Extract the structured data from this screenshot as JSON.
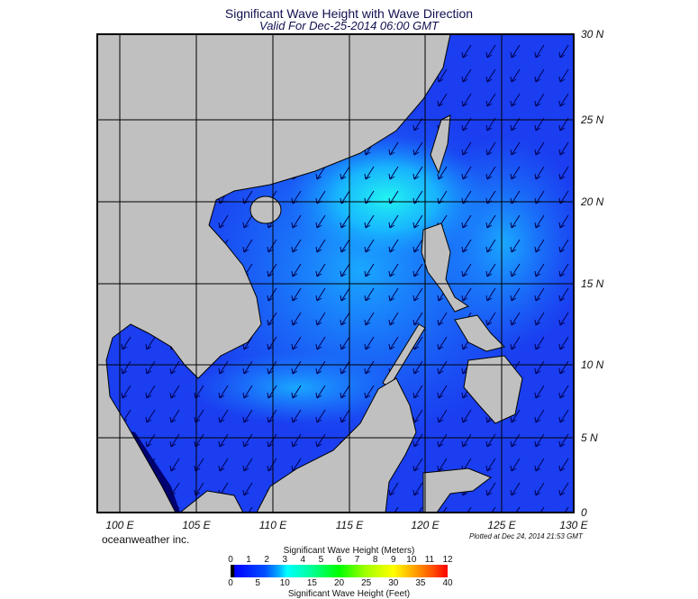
{
  "header": {
    "title": "Significant Wave Height with Wave Direction",
    "subtitle": "Valid For Dec-25-2014 06:00 GMT"
  },
  "map": {
    "lat_labels": [
      "30 N",
      "25 N",
      "20 N",
      "15 N",
      "10 N",
      "5 N",
      "0"
    ],
    "lon_labels": [
      "100 E",
      "105 E",
      "110 E",
      "115 E",
      "120 E",
      "125 E",
      "130 E"
    ],
    "colors": {
      "land": "#c0c0c0",
      "ocean_deep": "#1a3ef0",
      "ocean_mid": "#1690ff",
      "ocean_high": "#20f0f0",
      "dark_water": "#000060",
      "arrow": "#000050"
    }
  },
  "footer": {
    "brand": "oceanweather inc.",
    "plotted": "Plotted at Dec 24, 2014 21:53 GMT"
  },
  "colorbar": {
    "title_top": "Significant Wave Height (Meters)",
    "title_bottom": "Significant Wave Height (Feet)",
    "meters": [
      "0",
      "1",
      "2",
      "3",
      "4",
      "5",
      "6",
      "7",
      "8",
      "9",
      "10",
      "11",
      "12"
    ],
    "feet": [
      "0",
      "5",
      "10",
      "15",
      "20",
      "25",
      "30",
      "35",
      "40"
    ]
  }
}
